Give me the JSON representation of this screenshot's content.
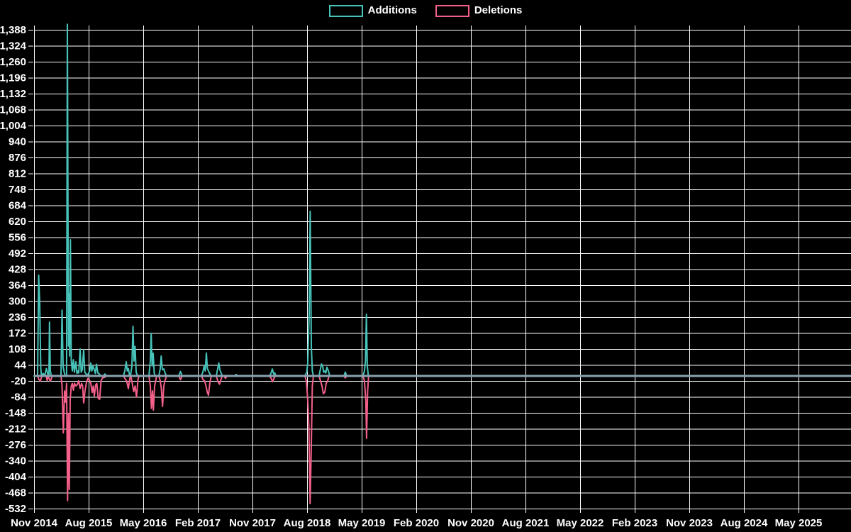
{
  "legend": {
    "items": [
      {
        "label": "Additions",
        "color": "#47c3ba"
      },
      {
        "label": "Deletions",
        "color": "#f4608a"
      }
    ]
  },
  "chart_data": {
    "type": "line",
    "title": "",
    "xlabel": "",
    "ylabel": "",
    "background_color": "#000000",
    "grid": true,
    "grid_color": "#ffffff",
    "text_color": "#ffffff",
    "zero_line_color": "#8ba2b0",
    "legend_position": "top-center",
    "x_axis": {
      "unit": "months since Nov 2014",
      "tick_interval_months": 9,
      "tick_labels": [
        "Nov 2014",
        "Aug 2015",
        "May 2016",
        "Feb 2017",
        "Nov 2017",
        "Aug 2018",
        "May 2019",
        "Feb 2020",
        "Nov 2020",
        "Aug 2021",
        "May 2022",
        "Feb 2023",
        "Nov 2023",
        "Aug 2024",
        "May 2025"
      ]
    },
    "y_axis": {
      "min": -532,
      "max": 1388,
      "step": 64,
      "ticks": [
        1388,
        1324,
        1260,
        1196,
        1132,
        1068,
        1004,
        940,
        876,
        812,
        748,
        684,
        620,
        556,
        492,
        428,
        364,
        300,
        236,
        172,
        108,
        44,
        -20,
        -84,
        -148,
        -212,
        -276,
        -340,
        -404,
        -468,
        -532
      ]
    },
    "series": [
      {
        "name": "Additions",
        "color": "#47c3ba",
        "points": [
          [
            0,
            0
          ],
          [
            0.58,
            0
          ],
          [
            0.76,
            404
          ],
          [
            0.93,
            293
          ],
          [
            1.11,
            30
          ],
          [
            1.23,
            0
          ],
          [
            1.52,
            10
          ],
          [
            1.75,
            0
          ],
          [
            2.05,
            30
          ],
          [
            2.34,
            0
          ],
          [
            2.45,
            0
          ],
          [
            2.55,
            216
          ],
          [
            2.69,
            20
          ],
          [
            2.86,
            0
          ],
          [
            4.44,
            0
          ],
          [
            4.62,
            264
          ],
          [
            4.79,
            40
          ],
          [
            4.97,
            15
          ],
          [
            5.14,
            0
          ],
          [
            5.37,
            0
          ],
          [
            5.49,
            1410
          ],
          [
            5.67,
            120
          ],
          [
            5.78,
            330
          ],
          [
            5.87,
            80
          ],
          [
            6.0,
            546
          ],
          [
            6.14,
            60
          ],
          [
            6.31,
            20
          ],
          [
            6.49,
            65
          ],
          [
            6.66,
            15
          ],
          [
            6.9,
            57
          ],
          [
            7.07,
            10
          ],
          [
            7.25,
            20
          ],
          [
            7.36,
            12
          ],
          [
            7.6,
            108
          ],
          [
            7.77,
            15
          ],
          [
            7.95,
            25
          ],
          [
            8.18,
            105
          ],
          [
            8.36,
            15
          ],
          [
            8.53,
            10
          ],
          [
            8.77,
            0
          ],
          [
            9.17,
            20
          ],
          [
            9.35,
            52
          ],
          [
            9.53,
            20
          ],
          [
            9.7,
            40
          ],
          [
            9.93,
            25
          ],
          [
            10.11,
            10
          ],
          [
            10.28,
            47
          ],
          [
            10.52,
            12
          ],
          [
            10.75,
            8
          ],
          [
            10.99,
            0
          ],
          [
            11.45,
            0
          ],
          [
            11.69,
            8
          ],
          [
            11.92,
            0
          ],
          [
            14.73,
            0
          ],
          [
            14.96,
            20
          ],
          [
            15.19,
            57
          ],
          [
            15.37,
            20
          ],
          [
            15.54,
            30
          ],
          [
            15.72,
            5
          ],
          [
            15.9,
            0
          ],
          [
            16.13,
            40
          ],
          [
            16.31,
            199
          ],
          [
            16.48,
            60
          ],
          [
            16.66,
            119
          ],
          [
            16.83,
            15
          ],
          [
            17.06,
            0
          ],
          [
            18.94,
            0
          ],
          [
            19.17,
            60
          ],
          [
            19.31,
            171
          ],
          [
            19.46,
            40
          ],
          [
            19.64,
            91
          ],
          [
            19.81,
            10
          ],
          [
            19.99,
            0
          ],
          [
            20.57,
            0
          ],
          [
            20.8,
            30
          ],
          [
            20.96,
            80
          ],
          [
            21.16,
            25
          ],
          [
            21.39,
            28
          ],
          [
            21.62,
            10
          ],
          [
            21.86,
            0
          ],
          [
            23.84,
            0
          ],
          [
            24.14,
            18
          ],
          [
            24.43,
            0
          ],
          [
            27.58,
            0
          ],
          [
            27.82,
            15
          ],
          [
            28.05,
            40
          ],
          [
            28.22,
            20
          ],
          [
            28.4,
            92
          ],
          [
            28.57,
            30
          ],
          [
            28.75,
            20
          ],
          [
            28.99,
            8
          ],
          [
            29.22,
            0
          ],
          [
            30.04,
            0
          ],
          [
            30.27,
            30
          ],
          [
            30.45,
            52
          ],
          [
            30.62,
            25
          ],
          [
            30.86,
            10
          ],
          [
            31.03,
            0
          ],
          [
            33.08,
            0
          ],
          [
            33.31,
            6
          ],
          [
            33.54,
            0
          ],
          [
            38.8,
            0
          ],
          [
            39.04,
            10
          ],
          [
            39.27,
            28
          ],
          [
            39.5,
            8
          ],
          [
            39.68,
            12
          ],
          [
            39.85,
            0
          ],
          [
            44.64,
            0
          ],
          [
            44.94,
            15
          ],
          [
            45.11,
            50
          ],
          [
            45.35,
            247
          ],
          [
            45.52,
            660
          ],
          [
            45.7,
            120
          ],
          [
            45.87,
            20
          ],
          [
            46.05,
            0
          ],
          [
            46.98,
            0
          ],
          [
            47.22,
            30
          ],
          [
            47.39,
            48
          ],
          [
            47.57,
            40
          ],
          [
            47.74,
            15
          ],
          [
            47.92,
            20
          ],
          [
            48.09,
            12
          ],
          [
            48.27,
            35
          ],
          [
            48.5,
            22
          ],
          [
            48.73,
            0
          ],
          [
            51.07,
            0
          ],
          [
            51.3,
            15
          ],
          [
            51.53,
            0
          ],
          [
            54.22,
            0
          ],
          [
            54.46,
            20
          ],
          [
            54.63,
            60
          ],
          [
            54.78,
            247
          ],
          [
            54.92,
            40
          ],
          [
            55.1,
            0
          ],
          [
            134.65,
            0
          ]
        ]
      },
      {
        "name": "Deletions",
        "color": "#f4608a",
        "points": [
          [
            0,
            0
          ],
          [
            0.58,
            0
          ],
          [
            0.82,
            -15
          ],
          [
            1.05,
            -20
          ],
          [
            1.29,
            0
          ],
          [
            1.99,
            0
          ],
          [
            2.16,
            -18
          ],
          [
            2.34,
            0
          ],
          [
            2.63,
            -20
          ],
          [
            2.81,
            -15
          ],
          [
            2.98,
            0
          ],
          [
            4.44,
            0
          ],
          [
            4.62,
            -40
          ],
          [
            4.83,
            -228
          ],
          [
            5.03,
            -60
          ],
          [
            5.2,
            -105
          ],
          [
            5.37,
            -30
          ],
          [
            5.53,
            -500
          ],
          [
            5.67,
            -150
          ],
          [
            5.81,
            -455
          ],
          [
            5.96,
            -94
          ],
          [
            6.14,
            -40
          ],
          [
            6.31,
            -30
          ],
          [
            6.49,
            -57
          ],
          [
            6.66,
            -30
          ],
          [
            6.9,
            -40
          ],
          [
            7.13,
            -35
          ],
          [
            7.36,
            -20
          ],
          [
            7.6,
            -50
          ],
          [
            7.83,
            -30
          ],
          [
            8.01,
            -40
          ],
          [
            8.18,
            -108
          ],
          [
            8.42,
            -57
          ],
          [
            8.65,
            -25
          ],
          [
            8.88,
            -10
          ],
          [
            9.12,
            -15
          ],
          [
            9.35,
            -30
          ],
          [
            9.58,
            -66
          ],
          [
            9.76,
            -40
          ],
          [
            9.93,
            -80
          ],
          [
            10.17,
            -35
          ],
          [
            10.34,
            -30
          ],
          [
            10.58,
            -89
          ],
          [
            10.81,
            -94
          ],
          [
            11.05,
            -20
          ],
          [
            11.28,
            -8
          ],
          [
            11.69,
            -5
          ],
          [
            11.92,
            0
          ],
          [
            14.73,
            0
          ],
          [
            15.02,
            -12
          ],
          [
            15.25,
            -20
          ],
          [
            15.54,
            -51
          ],
          [
            15.78,
            -10
          ],
          [
            15.95,
            0
          ],
          [
            16.19,
            -30
          ],
          [
            16.42,
            -63
          ],
          [
            16.66,
            -40
          ],
          [
            16.89,
            -85
          ],
          [
            17.12,
            -15
          ],
          [
            17.3,
            0
          ],
          [
            18.94,
            0
          ],
          [
            19.17,
            -40
          ],
          [
            19.34,
            -130
          ],
          [
            19.52,
            -60
          ],
          [
            19.67,
            -137
          ],
          [
            19.87,
            -40
          ],
          [
            20.04,
            -20
          ],
          [
            20.22,
            0
          ],
          [
            20.57,
            0
          ],
          [
            20.8,
            -20
          ],
          [
            20.98,
            -50
          ],
          [
            21.18,
            -122
          ],
          [
            21.39,
            -40
          ],
          [
            21.62,
            -15
          ],
          [
            21.86,
            0
          ],
          [
            23.84,
            0
          ],
          [
            24.14,
            -15
          ],
          [
            24.43,
            0
          ],
          [
            27.58,
            0
          ],
          [
            27.87,
            -15
          ],
          [
            28.11,
            -20
          ],
          [
            28.34,
            -40
          ],
          [
            28.55,
            -66
          ],
          [
            28.75,
            -77
          ],
          [
            28.99,
            -25
          ],
          [
            29.22,
            0
          ],
          [
            30.04,
            0
          ],
          [
            30.33,
            -24
          ],
          [
            30.57,
            -33
          ],
          [
            30.8,
            -15
          ],
          [
            31.03,
            0
          ],
          [
            31.32,
            0
          ],
          [
            31.56,
            -10
          ],
          [
            31.79,
            0
          ],
          [
            38.8,
            0
          ],
          [
            39.09,
            -10
          ],
          [
            39.33,
            -23
          ],
          [
            39.56,
            -8
          ],
          [
            39.79,
            0
          ],
          [
            44.64,
            0
          ],
          [
            44.88,
            -20
          ],
          [
            45.11,
            -94
          ],
          [
            45.29,
            -200
          ],
          [
            45.5,
            -512
          ],
          [
            45.7,
            -276
          ],
          [
            45.87,
            -40
          ],
          [
            46.05,
            0
          ],
          [
            46.98,
            0
          ],
          [
            47.28,
            -25
          ],
          [
            47.45,
            -40
          ],
          [
            47.69,
            -71
          ],
          [
            47.92,
            -65
          ],
          [
            48.15,
            -30
          ],
          [
            48.39,
            -20
          ],
          [
            48.62,
            0
          ],
          [
            51.07,
            0
          ],
          [
            51.3,
            -8
          ],
          [
            51.53,
            0
          ],
          [
            54.22,
            0
          ],
          [
            54.46,
            -20
          ],
          [
            54.69,
            -100
          ],
          [
            54.81,
            -250
          ],
          [
            54.98,
            -60
          ],
          [
            55.15,
            0
          ],
          [
            134.65,
            0
          ]
        ]
      }
    ]
  }
}
